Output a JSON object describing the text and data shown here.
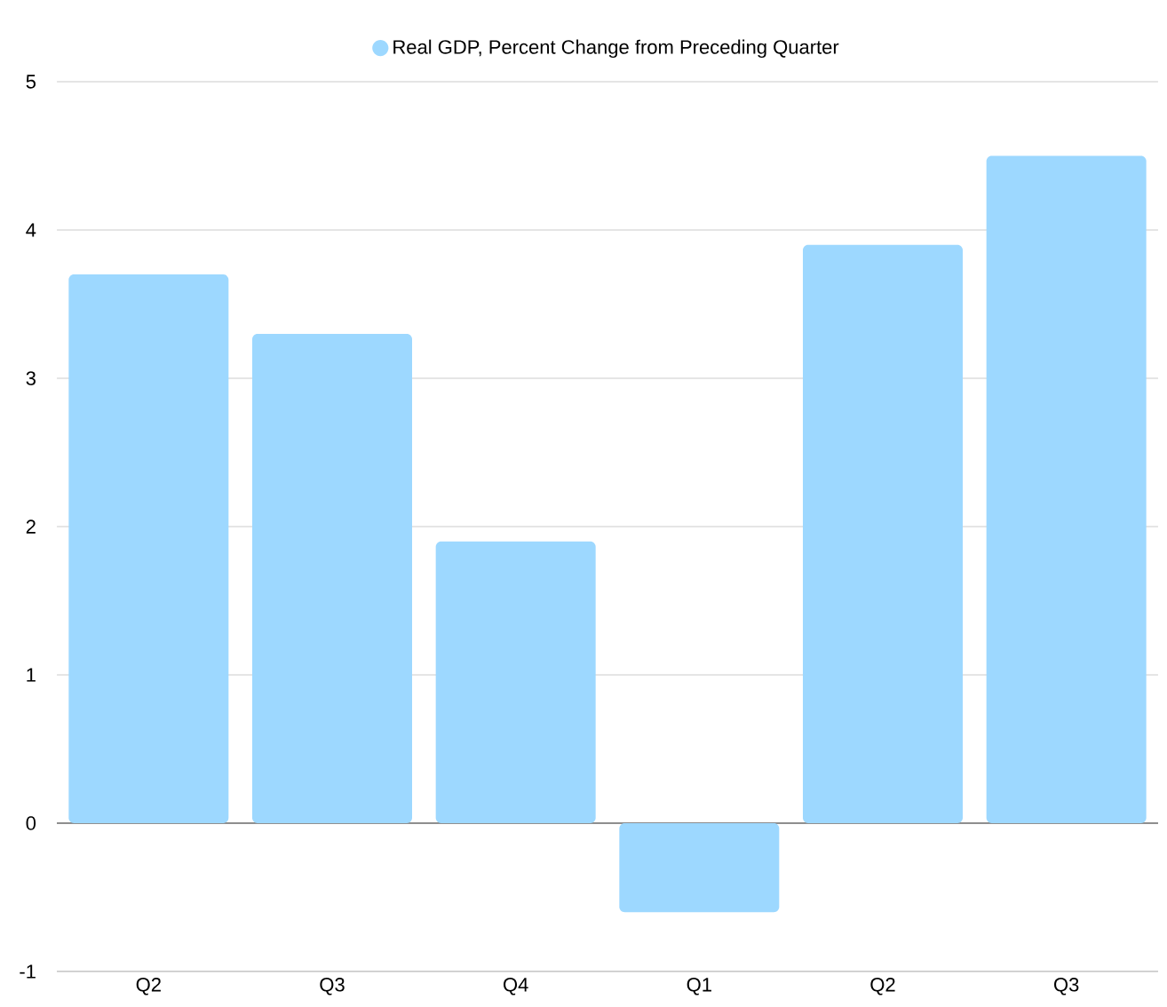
{
  "chart_data": {
    "type": "bar",
    "categories": [
      "Q2",
      "Q3",
      "Q4",
      "Q1",
      "Q2",
      "Q3"
    ],
    "series": [
      {
        "name": "Real GDP, Percent Change from Preceding Quarter",
        "color": "#9dd8ff",
        "values": [
          3.7,
          3.3,
          1.9,
          -0.6,
          3.9,
          4.5
        ]
      }
    ],
    "ylim": [
      -1,
      5
    ],
    "yticks": [
      -1,
      0,
      1,
      2,
      3,
      4,
      5
    ],
    "grid": "y",
    "legend": "top"
  }
}
